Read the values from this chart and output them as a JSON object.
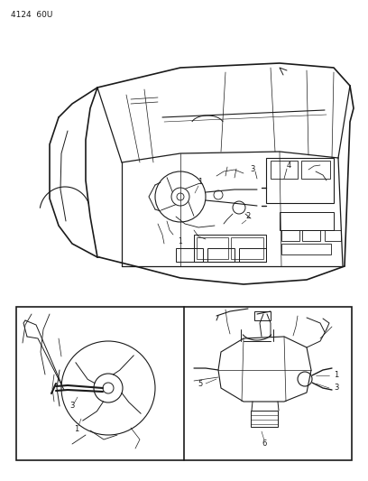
{
  "bg_color": "#ffffff",
  "line_color": "#1a1a1a",
  "part_number_text": "4124  60U",
  "fig_width": 4.08,
  "fig_height": 5.33,
  "dpi": 100
}
